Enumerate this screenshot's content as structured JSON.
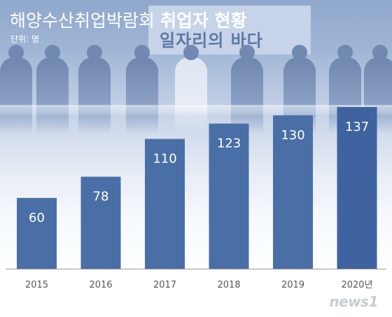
{
  "header": {
    "title_part1": "해양수산취업박람회",
    "title_part2": "취업자 현황",
    "unit": "단위: 명"
  },
  "photo": {
    "banner_text": "일자리의 바다"
  },
  "logo": {
    "text": "news1"
  },
  "colors": {
    "bar": "#4a6fa6",
    "bar_last": "#3e63a0",
    "axis": "#9a9a9a"
  },
  "chart_data": {
    "type": "bar",
    "title": "해양수산취업박람회 취업자 현황",
    "unit": "단위: 명",
    "categories": [
      "2015",
      "2016",
      "2017",
      "2018",
      "2019",
      "2020년"
    ],
    "values": [
      60,
      78,
      110,
      123,
      130,
      137
    ],
    "ylim": [
      0,
      150
    ],
    "grid": false,
    "legend": "none"
  }
}
